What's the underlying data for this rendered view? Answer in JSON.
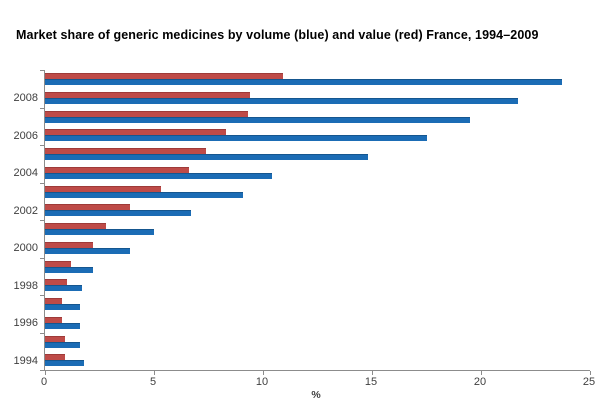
{
  "title": "Market share of generic medicines by volume (blue) and value (red) France, 1994–2009",
  "colors": {
    "volume_blue": "#1b6cb5",
    "volume_blue_border": "#15568f",
    "value_red": "#be4b48",
    "value_red_border": "#9e3b39",
    "axis": "#8c8c8c",
    "tick_text": "#3f3f3f"
  },
  "chart_data": {
    "type": "bar",
    "orientation": "horizontal",
    "title": "Market share of generic medicines by volume (blue) and value (red) France, 1994–2009",
    "xlabel": "%",
    "ylabel": "",
    "xlim": [
      0,
      25
    ],
    "xticks": [
      0,
      5,
      10,
      15,
      20,
      25
    ],
    "grid": false,
    "legend": "none (series identified by color in title)",
    "categories": [
      1994,
      1995,
      1996,
      1997,
      1998,
      1999,
      2000,
      2001,
      2002,
      2003,
      2004,
      2005,
      2006,
      2007,
      2008,
      2009
    ],
    "category_order_on_screen": "2009 at top, 1994 at bottom",
    "ytick_labels": [
      "2008",
      "2006",
      "2004",
      "2002",
      "2000",
      "1998",
      "1996",
      "1994"
    ],
    "series": [
      {
        "name": "value (red)",
        "color": "#be4b48",
        "values": [
          0.9,
          0.9,
          0.8,
          0.8,
          1.0,
          1.2,
          2.2,
          2.8,
          3.9,
          5.3,
          6.6,
          7.4,
          8.3,
          9.3,
          9.4,
          10.9
        ]
      },
      {
        "name": "volume (blue)",
        "color": "#1b6cb5",
        "values": [
          1.8,
          1.6,
          1.6,
          1.6,
          1.7,
          2.2,
          3.9,
          5.0,
          6.7,
          9.1,
          10.4,
          14.8,
          17.5,
          19.5,
          21.7,
          23.7
        ]
      }
    ]
  }
}
